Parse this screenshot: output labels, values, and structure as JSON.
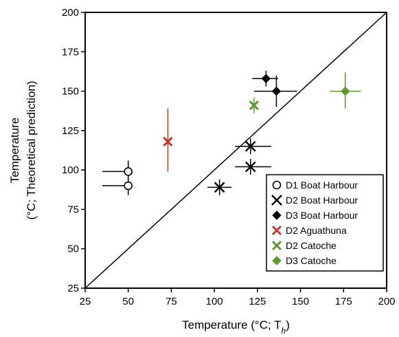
{
  "chart_data": {
    "type": "scatter",
    "xlabel": "Temperature (°C; T",
    "xlabel_sub": "h",
    "xlabel_end": ")",
    "ylabel_line1": "Temperature",
    "ylabel_line2": "(°C; Theoretical prediction)",
    "xlim": [
      25,
      200
    ],
    "ylim": [
      25,
      200
    ],
    "xticks": [
      25,
      50,
      75,
      100,
      125,
      150,
      175,
      200
    ],
    "yticks": [
      25,
      50,
      75,
      100,
      125,
      150,
      175,
      200
    ],
    "grid": false,
    "legend_position": "bottom-right",
    "reference_line": "1:1 diagonal",
    "series": [
      {
        "name": "D1 Boat Harbour",
        "marker": "open-circle",
        "color": "#000000",
        "points": [
          {
            "x": 50,
            "y": 99,
            "xerr": [
              35,
              50
            ],
            "yerr": [
              93,
              106
            ]
          },
          {
            "x": 50,
            "y": 90,
            "xerr": [
              35,
              50
            ],
            "yerr": [
              84,
              96
            ]
          }
        ]
      },
      {
        "name": "D2 Boat Harbour",
        "marker": "x-star",
        "color": "#000000",
        "points": [
          {
            "x": 103,
            "y": 89,
            "xerr": [
              96,
              110
            ],
            "yerr": [
              84,
              94
            ]
          },
          {
            "x": 121,
            "y": 115,
            "xerr": [
              112,
              133
            ],
            "yerr": [
              110,
              120
            ]
          },
          {
            "x": 121,
            "y": 102,
            "xerr": [
              112,
              133
            ],
            "yerr": [
              97,
              107
            ]
          }
        ]
      },
      {
        "name": "D3 Boat Harbour",
        "marker": "diamond",
        "color": "#000000",
        "points": [
          {
            "x": 130,
            "y": 158,
            "xerr": [
              122,
              137
            ],
            "yerr": [
              153,
              163
            ]
          },
          {
            "x": 136,
            "y": 150,
            "xerr": [
              123,
              148
            ],
            "yerr": [
              140,
              160
            ]
          }
        ]
      },
      {
        "name": "D2 Aguathuna",
        "marker": "x",
        "color": "#c0392b",
        "points": [
          {
            "x": 73,
            "y": 118,
            "xerr": [
              73,
              73
            ],
            "yerr": [
              99,
              139
            ]
          }
        ]
      },
      {
        "name": "D2 Catoche",
        "marker": "x",
        "color": "#5a9a2a",
        "points": [
          {
            "x": 123,
            "y": 141,
            "xerr": [
              123,
              123
            ],
            "yerr": [
              136,
              146
            ]
          }
        ]
      },
      {
        "name": "D3 Catoche",
        "marker": "diamond",
        "color": "#5a9a2a",
        "points": [
          {
            "x": 176,
            "y": 150,
            "xerr": [
              167,
              185
            ],
            "yerr": [
              139,
              162
            ]
          }
        ]
      }
    ]
  }
}
